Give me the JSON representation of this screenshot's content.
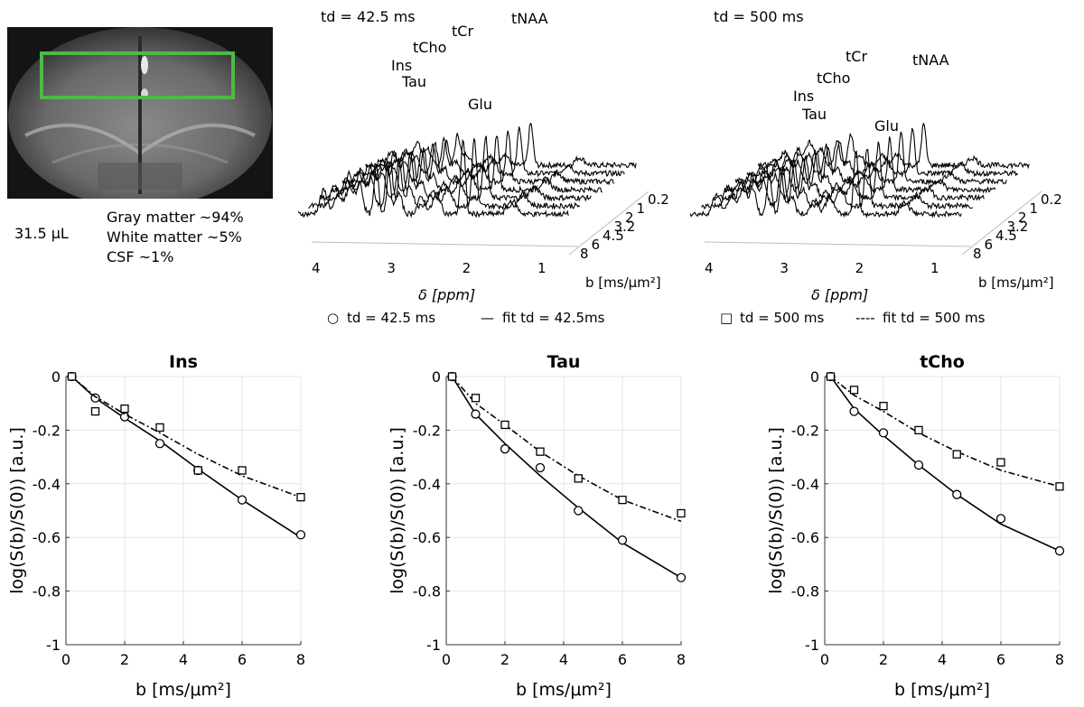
{
  "voxel": {
    "volume": "31.5 μL",
    "composition": [
      "Gray matter ~94%",
      "White matter ~5%",
      "CSF ~1%"
    ],
    "roi_color": "#4fb848"
  },
  "spectra_panels": [
    {
      "title": "td = 42.5 ms",
      "peaks": [
        "tNAA",
        "tCr",
        "tCho",
        "Ins",
        "Tau",
        "Glu"
      ],
      "x_ticks": [
        "4",
        "3",
        "2",
        "1"
      ],
      "xlabel": "δ [ppm]",
      "b_ticks": [
        "0.2",
        "1",
        "2",
        "3.2",
        "4.5",
        "6",
        "8"
      ],
      "blabel": "b [ms/μm²]",
      "legend_marker": "○",
      "legend_data": "td = 42.5 ms",
      "legend_line": "—",
      "legend_fit": "fit td = 42.5ms"
    },
    {
      "title": "td = 500 ms",
      "peaks": [
        "tNAA",
        "tCr",
        "tCho",
        "Ins",
        "Tau",
        "Glu"
      ],
      "x_ticks": [
        "4",
        "3",
        "2",
        "1"
      ],
      "xlabel": "δ [ppm]",
      "b_ticks": [
        "0.2",
        "1",
        "2",
        "3.2",
        "4.5",
        "6",
        "8"
      ],
      "blabel": "b [ms/μm²]",
      "legend_marker": "□",
      "legend_data": "td = 500 ms",
      "legend_line": "----",
      "legend_fit": "fit td = 500 ms"
    }
  ],
  "chart_data": [
    {
      "type": "scatter",
      "title": "Ins",
      "xlabel": "b [ms/μm²]",
      "ylabel": "log(S(b)/S(0)) [a.u.]",
      "xlim": [
        0,
        8
      ],
      "ylim": [
        -1,
        0
      ],
      "xticks": [
        0,
        2,
        4,
        6,
        8
      ],
      "yticks": [
        0,
        -0.2,
        -0.4,
        -0.6,
        -0.8,
        -1
      ],
      "grid": true,
      "x": [
        0.2,
        1,
        2,
        3.2,
        4.5,
        6,
        8
      ],
      "series": [
        {
          "name": "td = 42.5 ms",
          "marker": "circle",
          "values": [
            0,
            -0.08,
            -0.15,
            -0.25,
            -0.35,
            -0.46,
            -0.59
          ],
          "fit": [
            0,
            -0.08,
            -0.155,
            -0.24,
            -0.345,
            -0.46,
            -0.6
          ]
        },
        {
          "name": "td = 500 ms",
          "marker": "square",
          "values": [
            0,
            -0.13,
            -0.12,
            -0.19,
            -0.35,
            -0.35,
            -0.45
          ],
          "fit": [
            0,
            -0.075,
            -0.14,
            -0.21,
            -0.29,
            -0.37,
            -0.45
          ]
        }
      ]
    },
    {
      "type": "scatter",
      "title": "Tau",
      "xlabel": "b [ms/μm²]",
      "ylabel": "log(S(b)/S(0)) [a.u.]",
      "xlim": [
        0,
        8
      ],
      "ylim": [
        -1,
        0
      ],
      "xticks": [
        0,
        2,
        4,
        6,
        8
      ],
      "yticks": [
        0,
        -0.2,
        -0.4,
        -0.6,
        -0.8,
        -1
      ],
      "grid": true,
      "x": [
        0.2,
        1,
        2,
        3.2,
        4.5,
        6,
        8
      ],
      "series": [
        {
          "name": "td = 42.5 ms",
          "marker": "circle",
          "values": [
            0,
            -0.14,
            -0.27,
            -0.34,
            -0.5,
            -0.61,
            -0.75
          ],
          "fit": [
            0,
            -0.14,
            -0.25,
            -0.37,
            -0.49,
            -0.62,
            -0.75
          ]
        },
        {
          "name": "td = 500 ms",
          "marker": "square",
          "values": [
            0,
            -0.08,
            -0.18,
            -0.28,
            -0.38,
            -0.46,
            -0.51
          ],
          "fit": [
            0,
            -0.1,
            -0.18,
            -0.28,
            -0.37,
            -0.46,
            -0.54
          ]
        }
      ]
    },
    {
      "type": "scatter",
      "title": "tCho",
      "xlabel": "b [ms/μm²]",
      "ylabel": "log(S(b)/S(0)) [a.u.]",
      "xlim": [
        0,
        8
      ],
      "ylim": [
        -1,
        0
      ],
      "xticks": [
        0,
        2,
        4,
        6,
        8
      ],
      "yticks": [
        0,
        -0.2,
        -0.4,
        -0.6,
        -0.8,
        -1
      ],
      "grid": true,
      "x": [
        0.2,
        1,
        2,
        3.2,
        4.5,
        6,
        8
      ],
      "series": [
        {
          "name": "td = 42.5 ms",
          "marker": "circle",
          "values": [
            0,
            -0.13,
            -0.21,
            -0.33,
            -0.44,
            -0.53,
            -0.65
          ],
          "fit": [
            0,
            -0.12,
            -0.22,
            -0.33,
            -0.44,
            -0.55,
            -0.65
          ]
        },
        {
          "name": "td = 500 ms",
          "marker": "square",
          "values": [
            0,
            -0.05,
            -0.11,
            -0.2,
            -0.29,
            -0.32,
            -0.41
          ],
          "fit": [
            0,
            -0.07,
            -0.13,
            -0.21,
            -0.28,
            -0.35,
            -0.41
          ]
        }
      ]
    }
  ]
}
